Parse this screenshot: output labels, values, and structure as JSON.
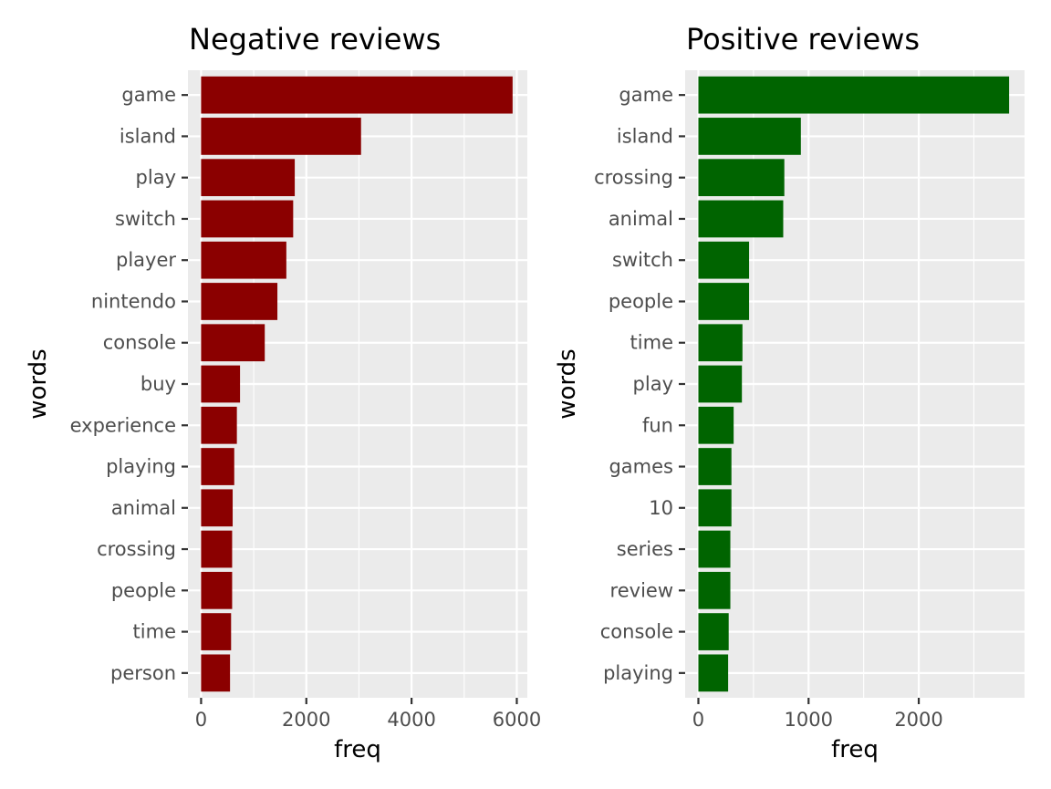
{
  "chart_data": [
    {
      "type": "bar",
      "orientation": "horizontal",
      "title": "Negative reviews",
      "xlabel": "freq",
      "ylabel": "words",
      "bar_color": "#8b0000",
      "categories": [
        "game",
        "island",
        "play",
        "switch",
        "player",
        "nintendo",
        "console",
        "buy",
        "experience",
        "playing",
        "animal",
        "crossing",
        "people",
        "time",
        "person"
      ],
      "values": [
        5920,
        3040,
        1780,
        1750,
        1620,
        1450,
        1210,
        740,
        680,
        630,
        600,
        590,
        590,
        570,
        550
      ],
      "xlim": [
        -250,
        6200
      ],
      "xticks": [
        0,
        2000,
        4000,
        6000
      ],
      "xtick_labels": [
        "0",
        "2000",
        "4000",
        "6000"
      ],
      "xminor": [
        1000,
        3000,
        5000
      ],
      "grid": true
    },
    {
      "type": "bar",
      "orientation": "horizontal",
      "title": "Positive reviews",
      "xlabel": "freq",
      "ylabel": "words",
      "bar_color": "#006400",
      "categories": [
        "game",
        "island",
        "crossing",
        "animal",
        "switch",
        "people",
        "time",
        "play",
        "fun",
        "games",
        "10",
        "series",
        "review",
        "console",
        "playing"
      ],
      "values": [
        2820,
        930,
        780,
        770,
        460,
        460,
        400,
        395,
        320,
        300,
        300,
        290,
        290,
        275,
        270
      ],
      "xlim": [
        -120,
        2960
      ],
      "xticks": [
        0,
        1000,
        2000
      ],
      "xtick_labels": [
        "0",
        "1000",
        "2000"
      ],
      "xminor": [
        500,
        1500,
        2500
      ],
      "grid": true
    }
  ]
}
